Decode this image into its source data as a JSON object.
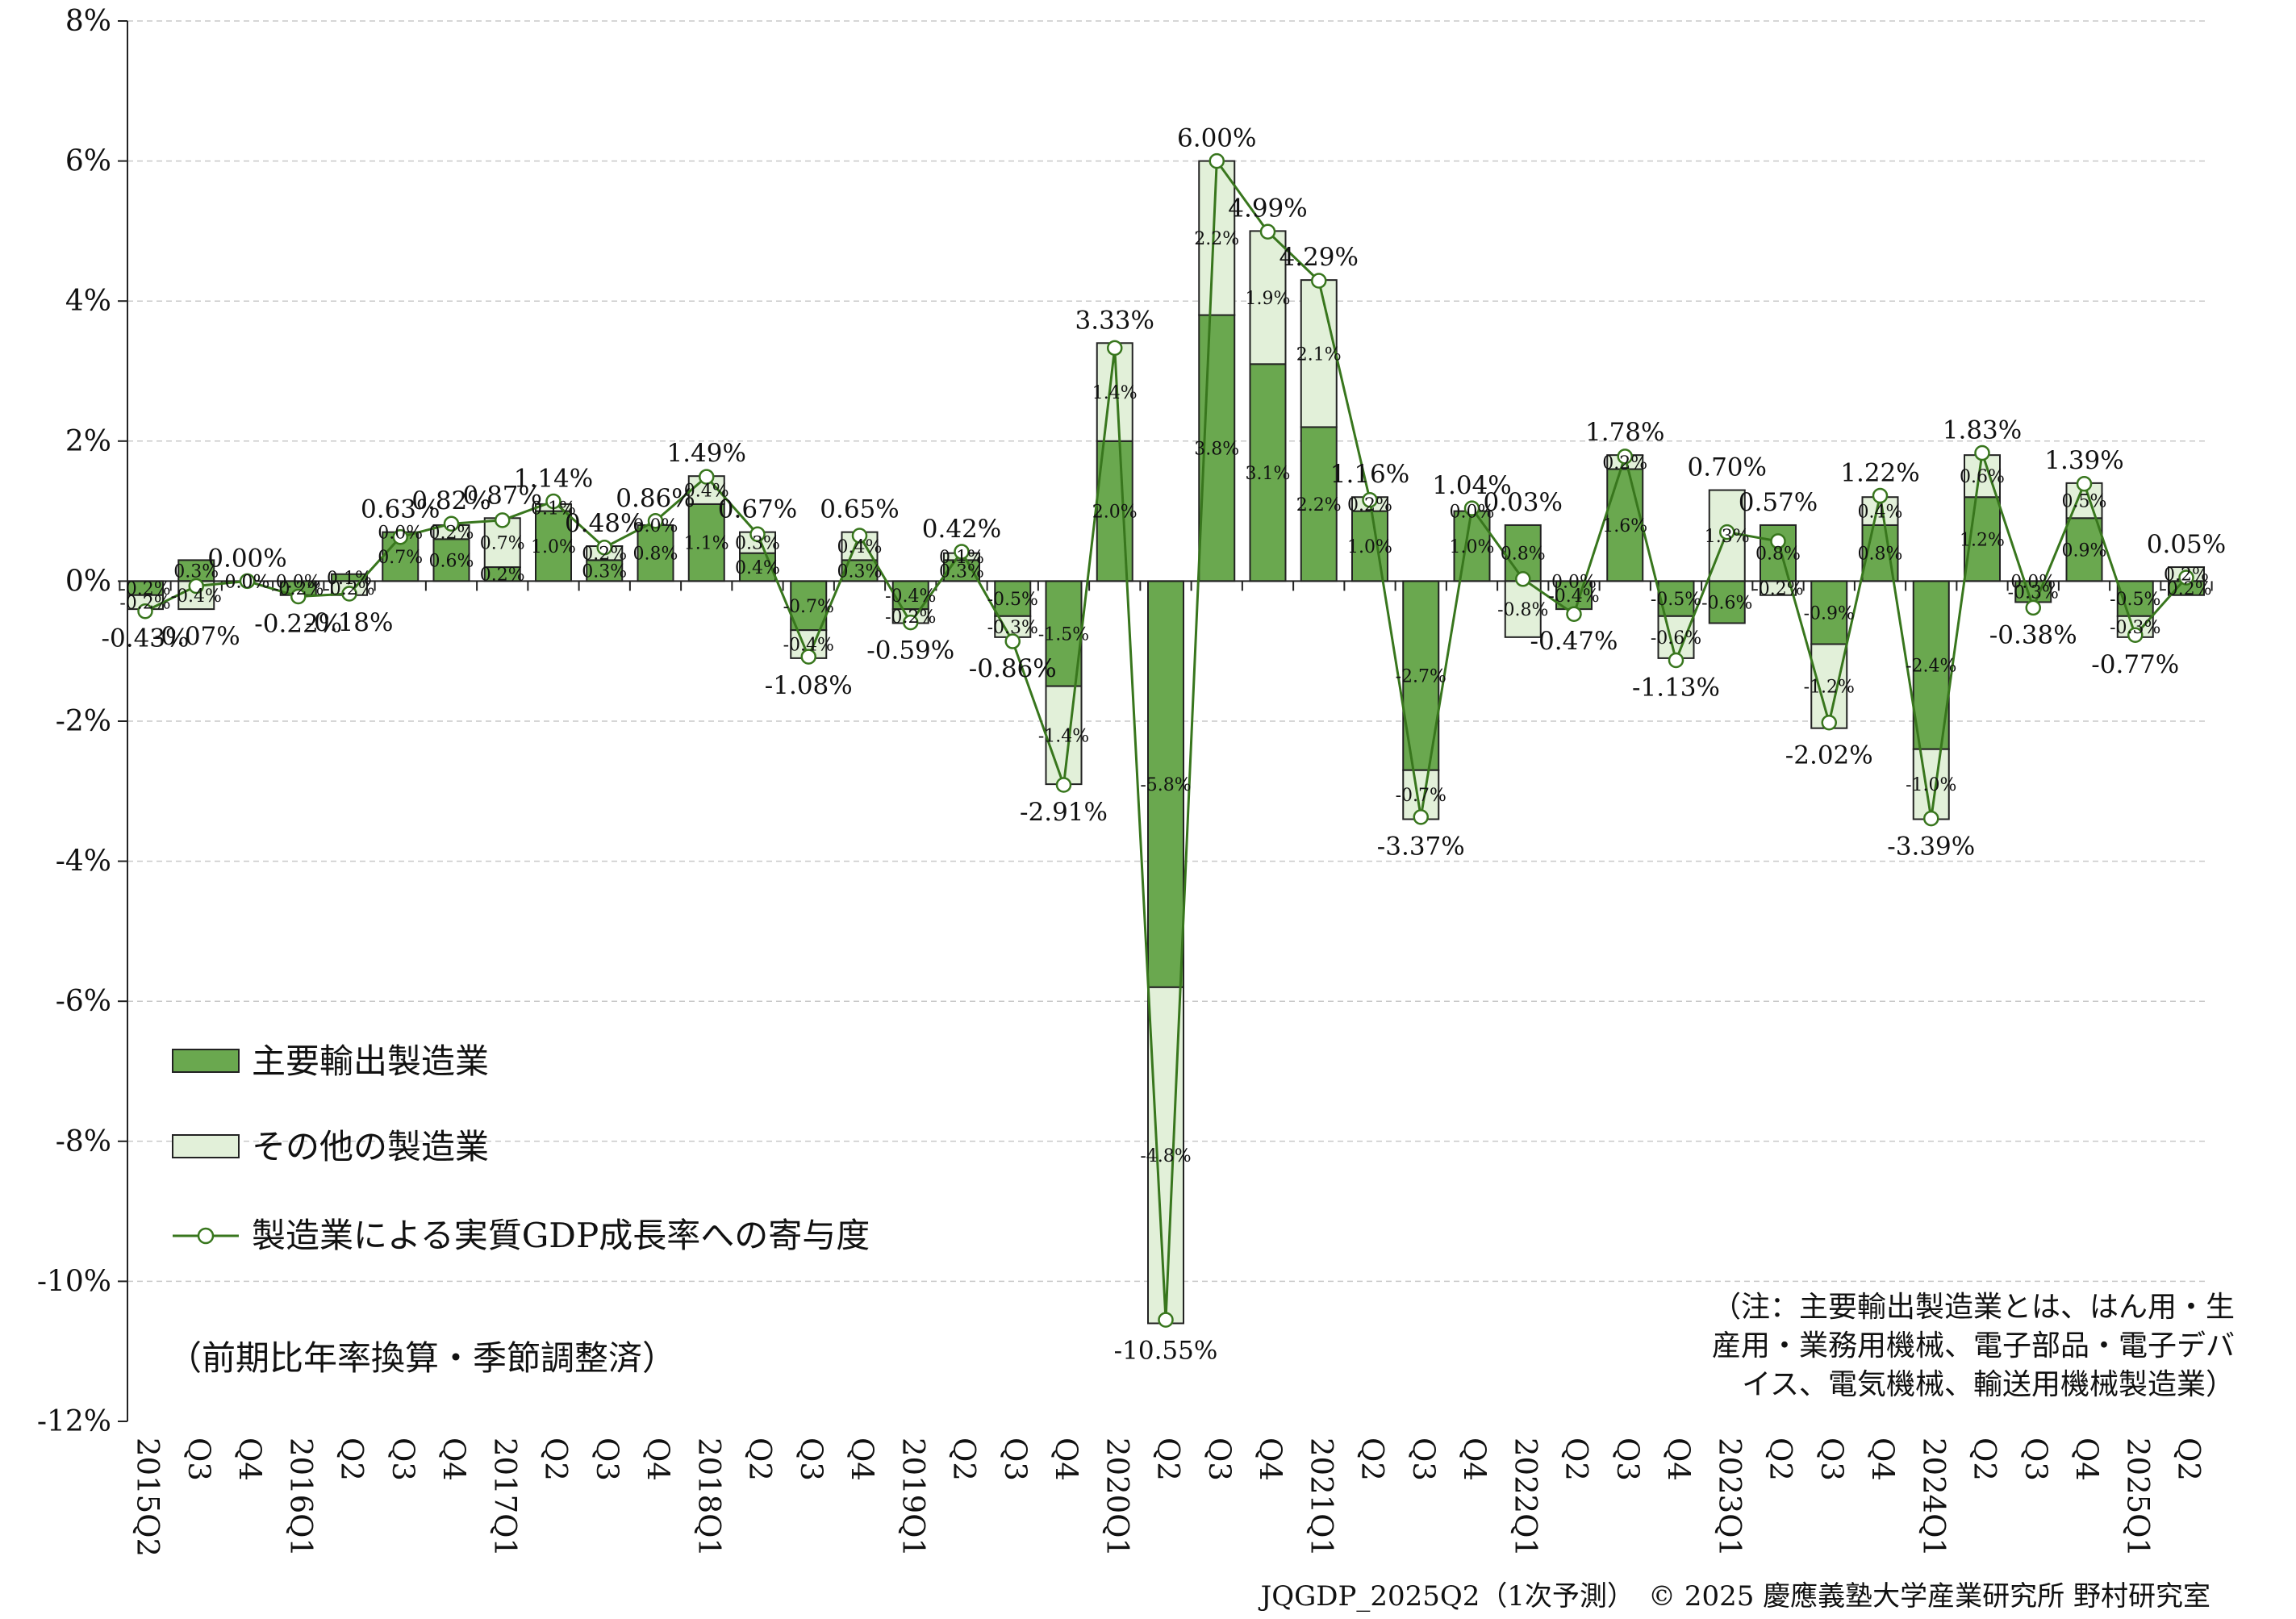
{
  "chart_data": {
    "type": "bar",
    "stacked": true,
    "categories": [
      "2015Q2",
      "Q3",
      "Q4",
      "2016Q1",
      "Q2",
      "Q3",
      "Q4",
      "2017Q1",
      "Q2",
      "Q3",
      "Q4",
      "2018Q1",
      "Q2",
      "Q3",
      "Q4",
      "2019Q1",
      "Q2",
      "Q3",
      "Q4",
      "2020Q1",
      "Q2",
      "Q3",
      "Q4",
      "2021Q1",
      "Q2",
      "Q3",
      "Q4",
      "2022Q1",
      "Q2",
      "Q3",
      "Q4",
      "2023Q1",
      "Q2",
      "Q3",
      "Q4",
      "2024Q1",
      "Q2",
      "Q3",
      "Q4",
      "2025Q1",
      "Q2"
    ],
    "series": [
      {
        "name": "主要輸出製造業",
        "color": "#6aa84f",
        "values": [
          -0.2,
          0.3,
          0.0,
          -0.2,
          0.1,
          0.7,
          0.6,
          0.2,
          1.0,
          0.3,
          0.8,
          1.1,
          0.4,
          -0.7,
          0.3,
          -0.4,
          0.3,
          -0.5,
          -1.5,
          2.0,
          -5.8,
          3.8,
          3.1,
          2.2,
          1.0,
          -2.7,
          1.0,
          0.8,
          -0.4,
          1.6,
          -0.5,
          -0.6,
          0.8,
          -0.9,
          0.8,
          -2.4,
          1.2,
          -0.3,
          0.9,
          -0.5,
          -0.2
        ],
        "labels": [
          "-0.2%",
          "0.3%",
          "0.0%",
          "-0.2%",
          "0.1%",
          "0.7%",
          "0.6%",
          "0.2%",
          "1.0%",
          "0.3%",
          "0.8%",
          "1.1%",
          "0.4%",
          "-0.7%",
          "0.3%",
          "-0.4%",
          "0.3%",
          "-0.5%",
          "-1.5%",
          "2.0%",
          "-5.8%",
          "3.8%",
          "3.1%",
          "2.2%",
          "1.0%",
          "-2.7%",
          "1.0%",
          "0.8%",
          "-0.4%",
          "1.6%",
          "-0.5%",
          "-0.6%",
          "0.8%",
          "-0.9%",
          "0.8%",
          "-2.4%",
          "1.2%",
          "-0.3%",
          "0.9%",
          "-0.5%",
          "-0.2%"
        ]
      },
      {
        "name": "その他の製造業",
        "color": "#e2f0d9",
        "values": [
          -0.2,
          -0.4,
          0.0,
          0.0,
          -0.2,
          0.0,
          0.2,
          0.7,
          0.1,
          0.2,
          0.0,
          0.4,
          0.3,
          -0.4,
          0.4,
          -0.2,
          0.1,
          -0.3,
          -1.4,
          1.4,
          -4.8,
          2.2,
          1.9,
          2.1,
          0.2,
          -0.7,
          0.0,
          -0.8,
          0.0,
          0.2,
          -0.6,
          1.3,
          -0.2,
          -1.2,
          0.4,
          -1.0,
          0.6,
          0.0,
          0.5,
          -0.3,
          0.2
        ],
        "labels": [
          "-0.2%",
          "-0.4%",
          "0.0%",
          "0.0%",
          "-0.2%",
          "0.0%",
          "0.2%",
          "0.7%",
          "0.1%",
          "0.2%",
          "0.0%",
          "0.4%",
          "0.3%",
          "-0.4%",
          "0.4%",
          "-0.2%",
          "0.1%",
          "-0.3%",
          "-1.4%",
          "1.4%",
          "-4.8%",
          "2.2%",
          "1.9%",
          "2.1%",
          "0.2%",
          "-0.7%",
          "0.0%",
          "-0.8%",
          "0.0%",
          "0.2%",
          "-0.6%",
          "1.3%",
          "-0.2%",
          "-1.2%",
          "0.4%",
          "-1.0%",
          "0.6%",
          "0.0%",
          "0.5%",
          "-0.3%",
          "0.2%"
        ]
      },
      {
        "name": "製造業による実質GDP成長率への寄与度",
        "color": "#38761d",
        "type": "line",
        "values": [
          -0.43,
          -0.07,
          0.0,
          -0.22,
          -0.18,
          0.63,
          0.82,
          0.87,
          1.14,
          0.48,
          0.86,
          1.49,
          0.67,
          -1.08,
          0.65,
          -0.59,
          0.42,
          -0.86,
          -2.91,
          3.33,
          -10.55,
          6.0,
          4.99,
          4.29,
          1.16,
          -3.37,
          1.04,
          0.03,
          -0.47,
          1.78,
          -1.13,
          0.7,
          0.57,
          -2.02,
          1.22,
          -3.39,
          1.83,
          -0.38,
          1.39,
          -0.77,
          0.05
        ],
        "labels": [
          "-0.43%",
          "-0.07%",
          "0.00%",
          "-0.22%",
          "-0.18%",
          "0.63%",
          "0.82%",
          "0.87%",
          "1.14%",
          "0.48%",
          "0.86%",
          "1.49%",
          "0.67%",
          "-1.08%",
          "0.65%",
          "-0.59%",
          "0.42%",
          "-0.86%",
          "-2.91%",
          "3.33%",
          "-10.55%",
          "6.00%",
          "4.99%",
          "4.29%",
          "1.16%",
          "-3.37%",
          "1.04%",
          "0.03%",
          "-0.47%",
          "1.78%",
          "-1.13%",
          "0.70%",
          "0.57%",
          "-2.02%",
          "1.22%",
          "-3.39%",
          "1.83%",
          "-0.38%",
          "1.39%",
          "-0.77%",
          "0.05%"
        ]
      }
    ],
    "ylim": [
      -12,
      8
    ],
    "yticks": [
      8,
      6,
      4,
      2,
      0,
      -2,
      -4,
      -6,
      -8,
      -10,
      -12
    ],
    "ytick_labels": [
      "8%",
      "6%",
      "4%",
      "2%",
      "0%",
      "-2%",
      "-4%",
      "-6%",
      "-8%",
      "-10%",
      "-12%"
    ],
    "grid": "horizontal-dashed",
    "legend_position": "left-middle"
  },
  "annotation": "（前期比年率換算・季節調整済）",
  "note": [
    "（注：主要輸出製造業とは、はん用・生",
    "産用・業務用機械、電子部品・電子デバ",
    "イス、電気機械、輸送用機械製造業）"
  ],
  "footer": "JQGDP_2025Q2（1次予測）　© 2025 慶應義塾大学産業研究所 野村研究室"
}
